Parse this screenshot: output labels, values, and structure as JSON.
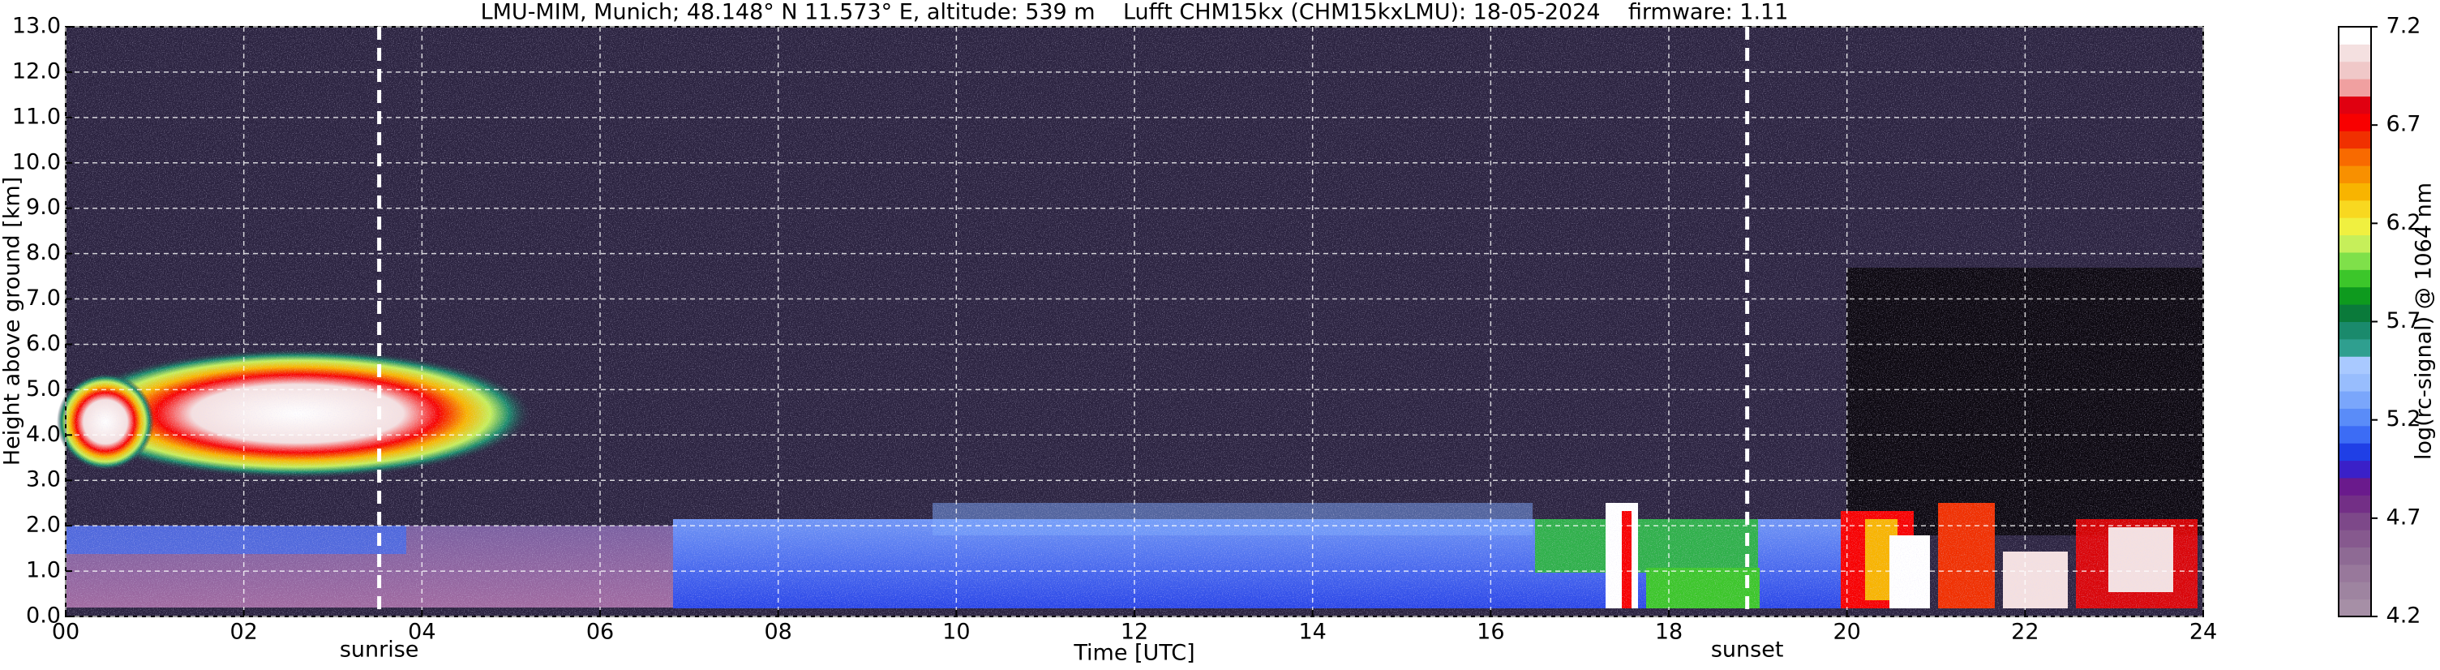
{
  "chart_data": {
    "type": "heatmap",
    "title": "LMU-MIM, Munich; 48.148° N 11.573° E, altitude: 539 m    Lufft CHM15kx (CHM15kxLMU): 18-05-2024    firmware: 1.11",
    "x_label": "Time [UTC]",
    "y_label": "Height above ground [km]",
    "xlim": [
      0,
      24
    ],
    "xticks": [
      {
        "value": 0,
        "label": "00"
      },
      {
        "value": 2,
        "label": "02"
      },
      {
        "value": 4,
        "label": "04"
      },
      {
        "value": 6,
        "label": "06"
      },
      {
        "value": 8,
        "label": "08"
      },
      10,
      12,
      14,
      16,
      18,
      20,
      22,
      24
    ],
    "ylim": [
      0,
      13
    ],
    "yticks": [
      {
        "value": 0,
        "label": "0.0"
      },
      {
        "value": 1,
        "label": "1.0"
      },
      {
        "value": 2,
        "label": "2.0"
      },
      {
        "value": 3,
        "label": "3.0"
      },
      {
        "value": 4,
        "label": "4.0"
      },
      {
        "value": 5,
        "label": "5.0"
      },
      {
        "value": 6,
        "label": "6.0"
      },
      {
        "value": 7,
        "label": "7.0"
      },
      {
        "value": 8,
        "label": "8.0"
      },
      {
        "value": 9,
        "label": "9.0"
      },
      {
        "value": 10,
        "label": "10.0"
      },
      {
        "value": 11,
        "label": "11.0"
      },
      {
        "value": 12,
        "label": "12.0"
      },
      {
        "value": 13,
        "label": "13.0"
      }
    ],
    "grid": true,
    "annotations": [
      {
        "label": "sunrise",
        "x": 3.52
      },
      {
        "label": "sunset",
        "x": 18.88
      }
    ],
    "colorbar": {
      "label": "log(rc-signal) @ 1064 nm",
      "clim": [
        4.2,
        7.2
      ],
      "ticks": [
        4.2,
        4.7,
        5.2,
        5.7,
        6.2,
        6.7,
        7.2
      ],
      "colors": [
        "#a68fa6",
        "#9e84a0",
        "#98789b",
        "#8e6a94",
        "#86598e",
        "#7d4889",
        "#732f86",
        "#6a1a8c",
        "#3a20c8",
        "#1f3fe6",
        "#3c6cf5",
        "#5a8cf8",
        "#7aa6fb",
        "#98bdfd",
        "#a9c9ff",
        "#2f9f8f",
        "#1a8a6c",
        "#0a7a3a",
        "#0e9a1e",
        "#3cc62a",
        "#7fe04a",
        "#c6ef5a",
        "#f0f040",
        "#f8d820",
        "#f8b400",
        "#f89000",
        "#f86a00",
        "#f03000",
        "#f80000",
        "#e00010",
        "#f0a0a0",
        "#f0c8c8",
        "#f4e0e0",
        "#ffffff"
      ]
    }
  }
}
